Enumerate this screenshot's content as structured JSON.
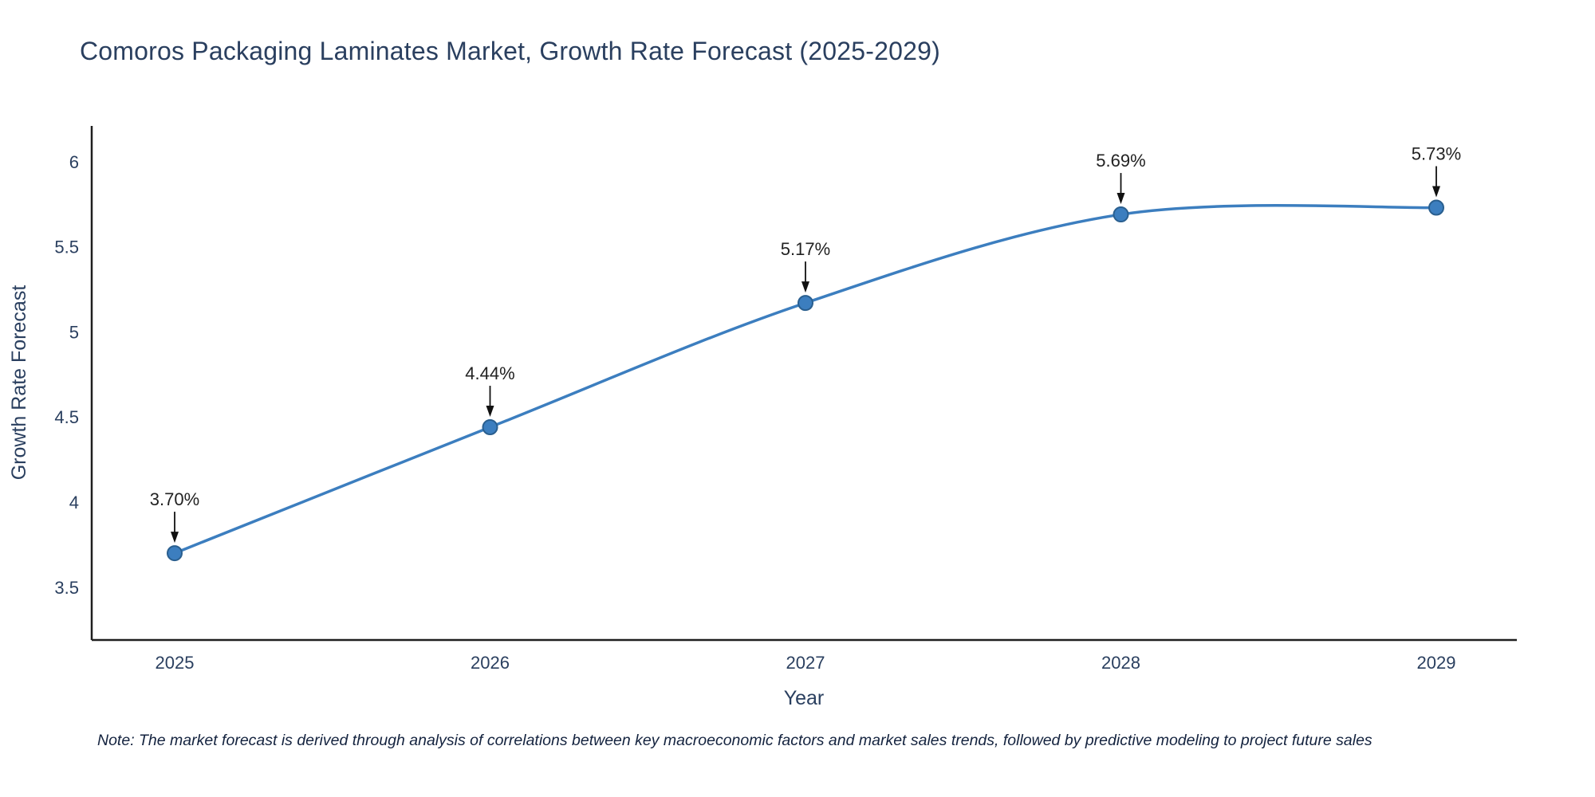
{
  "title": "Comoros Packaging Laminates Market, Growth Rate Forecast (2025-2029)",
  "note": "Note: The market forecast is derived through analysis of correlations between key macroeconomic factors and market sales trends, followed by predictive modeling to project future sales",
  "chart_data": {
    "type": "line",
    "title": "Comoros Packaging Laminates Market, Growth Rate Forecast (2025-2029)",
    "xlabel": "Year",
    "ylabel": "Growth Rate Forecast",
    "categories": [
      "2025",
      "2026",
      "2027",
      "2028",
      "2029"
    ],
    "x": [
      2025,
      2026,
      2027,
      2028,
      2029
    ],
    "values": [
      3.7,
      4.44,
      5.17,
      5.69,
      5.73
    ],
    "point_labels": [
      "3.70%",
      "4.44%",
      "5.17%",
      "5.69%",
      "5.73%"
    ],
    "yticks": [
      3.5,
      4,
      4.5,
      5,
      5.5,
      6
    ],
    "ylim": [
      3.19,
      6.21
    ],
    "grid": false,
    "legend": false,
    "line_color": "#3C7EBF",
    "marker_color": "#3C7EBF",
    "marker_edge_color": "#2A5F8F",
    "axis_color": "#1f1f1f",
    "text_color": "#2a3f5f",
    "annotation_arrow_color": "#111111"
  }
}
